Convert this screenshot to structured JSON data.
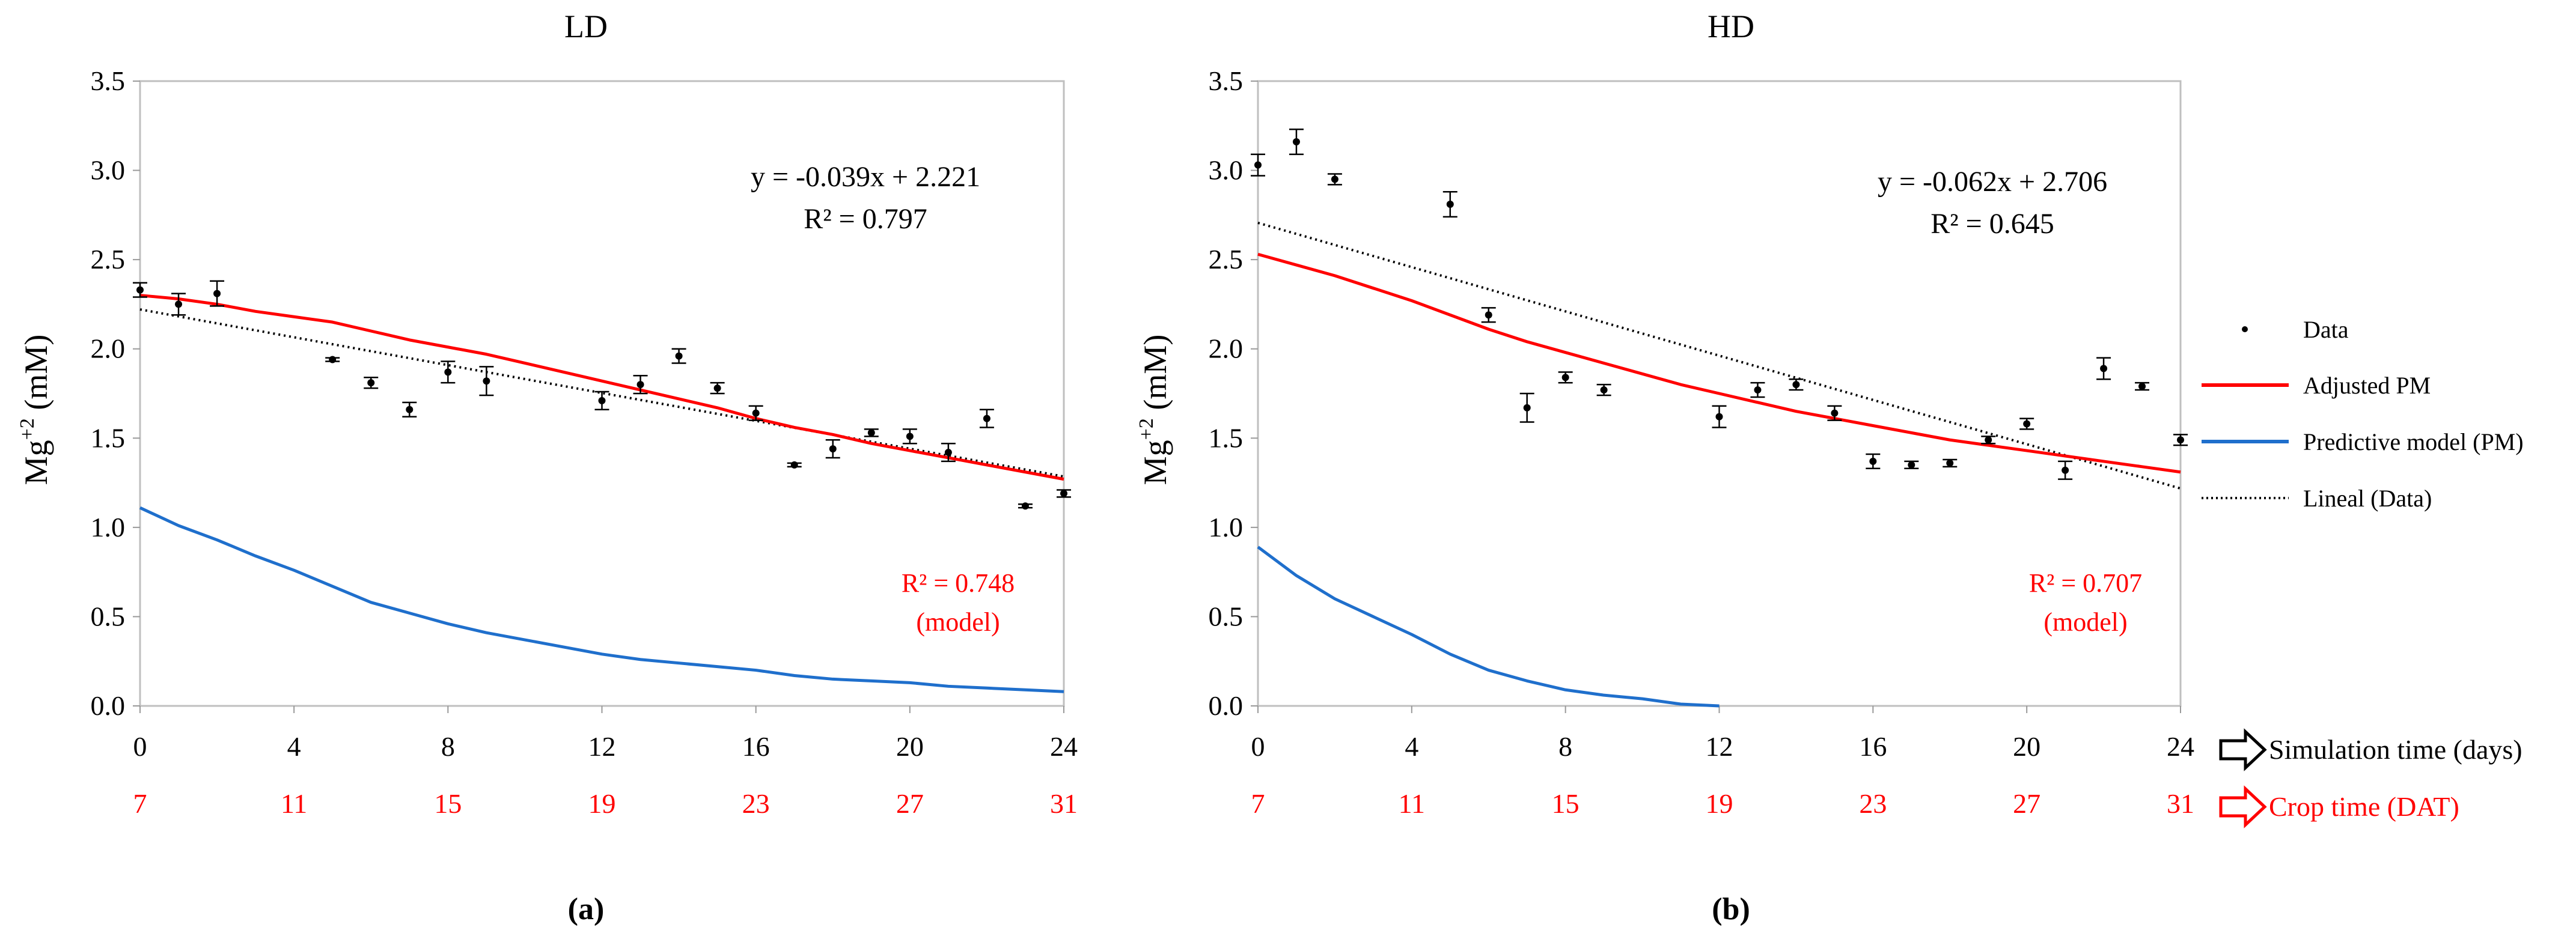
{
  "colors": {
    "adjusted": "#ff0000",
    "predictive": "#1f6fcc",
    "data": "#000000",
    "crop_axis": "#ff0000",
    "grid_box": "#bfbfbf"
  },
  "legend": {
    "data": "Data",
    "adjusted": "Adjusted PM",
    "predictive": "Predictive model (PM)",
    "lineal": "Lineal (Data)"
  },
  "axis_notes": {
    "simulation": "Simulation time (days)",
    "crop": "Crop time (DAT)",
    "arrow_icon": "outline-right-arrow-icon"
  },
  "chart_data": [
    {
      "type": "line",
      "title": "LD",
      "caption": "(a)",
      "xlabel": "Simulation time (days)",
      "ylabel": "Mg+2 (mM)",
      "ylabel_main": "Mg",
      "ylabel_sup": "+2",
      "ylabel_unit": " (mM)",
      "xlim": [
        0,
        24
      ],
      "ylim": [
        0,
        3.5
      ],
      "x_ticks": [
        "0",
        "4",
        "8",
        "12",
        "16",
        "20",
        "24"
      ],
      "x_tick_values": [
        0,
        4,
        8,
        12,
        16,
        20,
        24
      ],
      "crop_ticks": [
        "7",
        "11",
        "15",
        "19",
        "23",
        "27",
        "31"
      ],
      "y_ticks": [
        "0.0",
        "0.5",
        "1.0",
        "1.5",
        "2.0",
        "2.5",
        "3.0",
        "3.5"
      ],
      "y_tick_values": [
        0,
        0.5,
        1.0,
        1.5,
        2.0,
        2.5,
        3.0,
        3.5
      ],
      "equation": "y = -0.039x + 2.221",
      "r2": "R² = 0.797",
      "model_r2": "R² = 0.748",
      "model_r2_note": "(model)",
      "data_points": [
        {
          "x": 0,
          "y": 2.33,
          "err": 0.04
        },
        {
          "x": 1,
          "y": 2.25,
          "err": 0.06
        },
        {
          "x": 2,
          "y": 2.31,
          "err": 0.07
        },
        {
          "x": 5,
          "y": 1.94,
          "err": 0.01
        },
        {
          "x": 6,
          "y": 1.81,
          "err": 0.03
        },
        {
          "x": 7,
          "y": 1.66,
          "err": 0.04
        },
        {
          "x": 8,
          "y": 1.87,
          "err": 0.06
        },
        {
          "x": 9,
          "y": 1.82,
          "err": 0.08
        },
        {
          "x": 12,
          "y": 1.71,
          "err": 0.05
        },
        {
          "x": 13,
          "y": 1.8,
          "err": 0.05
        },
        {
          "x": 14,
          "y": 1.96,
          "err": 0.04
        },
        {
          "x": 15,
          "y": 1.78,
          "err": 0.03
        },
        {
          "x": 16,
          "y": 1.64,
          "err": 0.04
        },
        {
          "x": 17,
          "y": 1.35,
          "err": 0.01
        },
        {
          "x": 18,
          "y": 1.44,
          "err": 0.05
        },
        {
          "x": 19,
          "y": 1.53,
          "err": 0.02
        },
        {
          "x": 20,
          "y": 1.51,
          "err": 0.04
        },
        {
          "x": 21,
          "y": 1.42,
          "err": 0.05
        },
        {
          "x": 22,
          "y": 1.61,
          "err": 0.05
        },
        {
          "x": 23,
          "y": 1.12,
          "err": 0.01
        },
        {
          "x": 24,
          "y": 1.19,
          "err": 0.02
        }
      ],
      "adjusted_pm": {
        "x": [
          0,
          1,
          2,
          3,
          4,
          5,
          6,
          7,
          8,
          9,
          10,
          11,
          12,
          13,
          14,
          15,
          16,
          17,
          18,
          19,
          20,
          21,
          22,
          23,
          24
        ],
        "y": [
          2.3,
          2.28,
          2.25,
          2.21,
          2.18,
          2.15,
          2.1,
          2.05,
          2.01,
          1.97,
          1.92,
          1.87,
          1.82,
          1.77,
          1.72,
          1.67,
          1.61,
          1.56,
          1.52,
          1.47,
          1.43,
          1.39,
          1.35,
          1.31,
          1.27
        ]
      },
      "predictive_pm": {
        "x": [
          0,
          1,
          2,
          3,
          4,
          5,
          6,
          7,
          8,
          9,
          10,
          11,
          12,
          13,
          14,
          15,
          16,
          17,
          18,
          19,
          20,
          21,
          22,
          23,
          24
        ],
        "y": [
          1.11,
          1.01,
          0.93,
          0.84,
          0.76,
          0.67,
          0.58,
          0.52,
          0.46,
          0.41,
          0.37,
          0.33,
          0.29,
          0.26,
          0.24,
          0.22,
          0.2,
          0.17,
          0.15,
          0.14,
          0.13,
          0.11,
          0.1,
          0.09,
          0.08
        ]
      },
      "trend": {
        "slope": -0.039,
        "intercept": 2.221
      }
    },
    {
      "type": "line",
      "title": "HD",
      "caption": "(b)",
      "xlabel": "Simulation time (days)",
      "ylabel": "Mg+2 (mM)",
      "ylabel_main": "Mg",
      "ylabel_sup": "+2",
      "ylabel_unit": " (mM)",
      "xlim": [
        0,
        24
      ],
      "ylim": [
        0,
        3.5
      ],
      "x_ticks": [
        "0",
        "4",
        "8",
        "12",
        "16",
        "20",
        "24"
      ],
      "x_tick_values": [
        0,
        4,
        8,
        12,
        16,
        20,
        24
      ],
      "crop_ticks": [
        "7",
        "11",
        "15",
        "19",
        "23",
        "27",
        "31"
      ],
      "y_ticks": [
        "0.0",
        "0.5",
        "1.0",
        "1.5",
        "2.0",
        "2.5",
        "3.0",
        "3.5"
      ],
      "y_tick_values": [
        0,
        0.5,
        1.0,
        1.5,
        2.0,
        2.5,
        3.0,
        3.5
      ],
      "equation": "y = -0.062x + 2.706",
      "r2": "R² = 0.645",
      "model_r2": "R² = 0.707",
      "model_r2_note": "(model)",
      "data_points": [
        {
          "x": 0,
          "y": 3.03,
          "err": 0.06
        },
        {
          "x": 1,
          "y": 3.16,
          "err": 0.07
        },
        {
          "x": 2,
          "y": 2.95,
          "err": 0.03
        },
        {
          "x": 5,
          "y": 2.81,
          "err": 0.07
        },
        {
          "x": 6,
          "y": 2.19,
          "err": 0.04
        },
        {
          "x": 7,
          "y": 1.67,
          "err": 0.08
        },
        {
          "x": 8,
          "y": 1.84,
          "err": 0.03
        },
        {
          "x": 9,
          "y": 1.77,
          "err": 0.03
        },
        {
          "x": 12,
          "y": 1.62,
          "err": 0.06
        },
        {
          "x": 13,
          "y": 1.77,
          "err": 0.04
        },
        {
          "x": 14,
          "y": 1.8,
          "err": 0.03
        },
        {
          "x": 15,
          "y": 1.64,
          "err": 0.04
        },
        {
          "x": 16,
          "y": 1.37,
          "err": 0.04
        },
        {
          "x": 17,
          "y": 1.35,
          "err": 0.02
        },
        {
          "x": 18,
          "y": 1.36,
          "err": 0.02
        },
        {
          "x": 19,
          "y": 1.49,
          "err": 0.02
        },
        {
          "x": 20,
          "y": 1.58,
          "err": 0.03
        },
        {
          "x": 21,
          "y": 1.32,
          "err": 0.05
        },
        {
          "x": 22,
          "y": 1.89,
          "err": 0.06
        },
        {
          "x": 23,
          "y": 1.79,
          "err": 0.02
        },
        {
          "x": 24,
          "y": 1.49,
          "err": 0.03
        }
      ],
      "adjusted_pm": {
        "x": [
          0,
          1,
          2,
          3,
          4,
          5,
          6,
          7,
          8,
          9,
          10,
          11,
          12,
          13,
          14,
          15,
          16,
          17,
          18,
          19,
          20,
          21,
          22,
          23,
          24
        ],
        "y": [
          2.53,
          2.47,
          2.41,
          2.34,
          2.27,
          2.19,
          2.11,
          2.04,
          1.98,
          1.92,
          1.86,
          1.8,
          1.75,
          1.7,
          1.65,
          1.61,
          1.57,
          1.53,
          1.49,
          1.46,
          1.43,
          1.4,
          1.37,
          1.34,
          1.31
        ]
      },
      "predictive_pm": {
        "x": [
          0,
          1,
          2,
          3,
          4,
          5,
          6,
          7,
          8,
          9,
          10,
          11,
          12
        ],
        "y": [
          0.89,
          0.73,
          0.6,
          0.5,
          0.4,
          0.29,
          0.2,
          0.14,
          0.09,
          0.06,
          0.04,
          0.01,
          0.0
        ]
      },
      "trend": {
        "slope": -0.062,
        "intercept": 2.706
      }
    }
  ]
}
